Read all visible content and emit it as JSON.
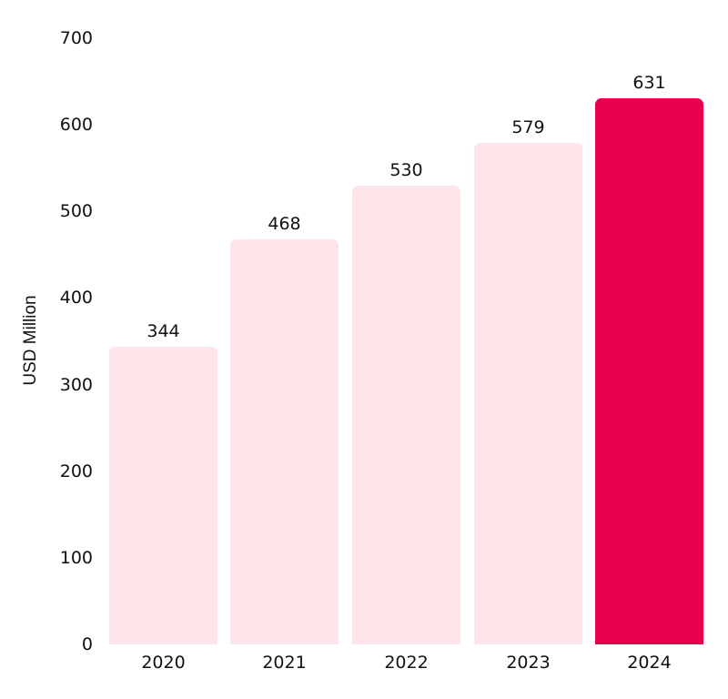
{
  "chart_data": {
    "type": "bar",
    "title": "",
    "xlabel": "",
    "ylabel": "USD Million",
    "ylim": [
      0,
      700
    ],
    "yticks": [
      0,
      100,
      200,
      300,
      400,
      500,
      600,
      700
    ],
    "grid": false,
    "legend": null,
    "categories": [
      "2020",
      "2021",
      "2022",
      "2023",
      "2024"
    ],
    "values": [
      344,
      468,
      530,
      579,
      631
    ],
    "data_labels": [
      "344",
      "468",
      "530",
      "579",
      "631"
    ],
    "colors": [
      "#fde5e9",
      "#fde5e9",
      "#fde5e9",
      "#fde5e9",
      "#e8004f"
    ],
    "highlight_category": "2024"
  }
}
